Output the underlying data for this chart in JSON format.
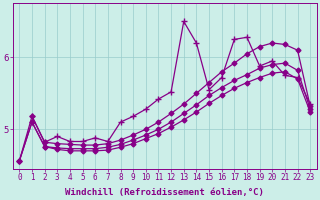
{
  "xlabel": "Windchill (Refroidissement éolien,°C)",
  "bg_color": "#cceee8",
  "line_color": "#880088",
  "xlim_min": -0.5,
  "xlim_max": 23.5,
  "ylim_min": 4.45,
  "ylim_max": 6.75,
  "yticks": [
    5,
    6
  ],
  "xticks": [
    0,
    1,
    2,
    3,
    4,
    5,
    6,
    7,
    8,
    9,
    10,
    11,
    12,
    13,
    14,
    15,
    16,
    17,
    18,
    19,
    20,
    21,
    22,
    23
  ],
  "grid_color": "#99cccc",
  "series1_x": [
    0,
    1,
    2,
    3,
    4,
    5,
    6,
    7,
    8,
    9,
    10,
    11,
    12,
    13,
    14,
    15,
    16,
    17,
    18,
    19,
    20,
    21,
    22,
    23
  ],
  "series1_y": [
    4.56,
    5.18,
    4.82,
    4.8,
    4.79,
    4.78,
    4.78,
    4.8,
    4.85,
    4.92,
    5.0,
    5.1,
    5.22,
    5.35,
    5.5,
    5.65,
    5.8,
    5.92,
    6.05,
    6.15,
    6.2,
    6.18,
    6.1,
    5.32
  ],
  "series2_x": [
    0,
    1,
    2,
    3,
    4,
    5,
    6,
    7,
    8,
    9,
    10,
    11,
    12,
    13,
    14,
    15,
    16,
    17,
    18,
    19,
    20,
    21,
    22,
    23
  ],
  "series2_y": [
    4.56,
    5.1,
    4.76,
    4.74,
    4.73,
    4.73,
    4.73,
    4.75,
    4.79,
    4.85,
    4.92,
    5.0,
    5.1,
    5.22,
    5.34,
    5.47,
    5.58,
    5.68,
    5.76,
    5.85,
    5.9,
    5.92,
    5.82,
    5.28
  ],
  "series3_x": [
    0,
    1,
    2,
    3,
    4,
    5,
    6,
    7,
    8,
    9,
    10,
    11,
    12,
    13,
    14,
    15,
    16,
    17,
    18,
    19,
    20,
    21,
    22,
    23
  ],
  "series3_y": [
    4.56,
    5.1,
    4.76,
    4.72,
    4.7,
    4.7,
    4.7,
    4.71,
    4.75,
    4.8,
    4.87,
    4.94,
    5.03,
    5.13,
    5.24,
    5.36,
    5.47,
    5.57,
    5.65,
    5.72,
    5.78,
    5.8,
    5.7,
    5.24
  ],
  "series4_x": [
    1,
    2,
    3,
    4,
    5,
    6,
    7,
    8,
    9,
    10,
    11,
    12,
    13,
    14,
    15,
    16,
    17,
    18,
    19,
    20,
    21,
    22,
    23
  ],
  "series4_y": [
    5.18,
    4.82,
    4.9,
    4.83,
    4.83,
    4.88,
    4.83,
    5.1,
    5.18,
    5.28,
    5.42,
    5.52,
    6.5,
    6.2,
    5.55,
    5.72,
    6.25,
    6.28,
    5.88,
    5.95,
    5.75,
    5.72,
    5.35
  ],
  "marker_size": 2.5,
  "line_width": 0.9,
  "tick_fontsize": 5.5,
  "xlabel_fontsize": 6.5
}
